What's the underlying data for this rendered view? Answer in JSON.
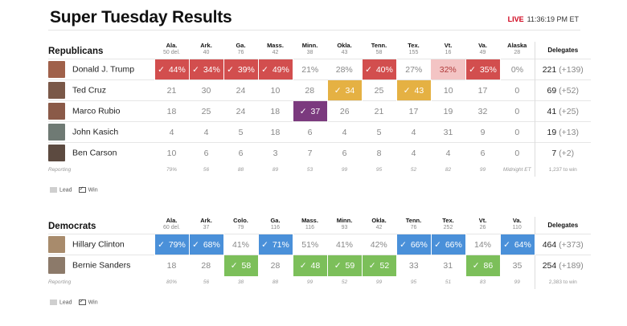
{
  "header": {
    "title": "Super Tuesday Results",
    "live_label": "LIVE",
    "time": "11:36:19 PM ET"
  },
  "colors": {
    "rep_win": "#d24e4e",
    "rep_lead": "#f3c4c4",
    "dem_win": "#4a90d9",
    "sanders_win": "#7cbf5a",
    "cruz_win": "#e5b143",
    "rubio_win": "#7b3a7e"
  },
  "legend": {
    "lead": "Lead",
    "win": "Win"
  },
  "republicans": {
    "party": "Republicans",
    "delegates_header": "Delegates",
    "states": [
      {
        "abbr": "Ala.",
        "sub": "50 del."
      },
      {
        "abbr": "Ark.",
        "sub": "40"
      },
      {
        "abbr": "Ga.",
        "sub": "76"
      },
      {
        "abbr": "Mass.",
        "sub": "42"
      },
      {
        "abbr": "Minn.",
        "sub": "38"
      },
      {
        "abbr": "Okla.",
        "sub": "43"
      },
      {
        "abbr": "Tenn.",
        "sub": "58"
      },
      {
        "abbr": "Tex.",
        "sub": "155"
      },
      {
        "abbr": "Vt.",
        "sub": "16"
      },
      {
        "abbr": "Va.",
        "sub": "49"
      },
      {
        "abbr": "Alaska",
        "sub": "28"
      }
    ],
    "candidates": [
      {
        "name": "Donald J. Trump",
        "avatar": "#a0614a",
        "color": "#d24e4e",
        "values": [
          "44%",
          "34%",
          "39%",
          "49%",
          "21%",
          "28%",
          "40%",
          "27%",
          "32%",
          "35%",
          "0%"
        ],
        "status": [
          "win",
          "win",
          "win",
          "win",
          "",
          "",
          "win",
          "",
          "lead",
          "win",
          ""
        ],
        "delegates": "221",
        "change": "(+139)"
      },
      {
        "name": "Ted Cruz",
        "avatar": "#7a5848",
        "color": "#e5b143",
        "values": [
          "21",
          "30",
          "24",
          "10",
          "28",
          "34",
          "25",
          "43",
          "10",
          "17",
          "0"
        ],
        "status": [
          "",
          "",
          "",
          "",
          "",
          "win",
          "",
          "win",
          "",
          "",
          ""
        ],
        "delegates": "69",
        "change": "(+52)"
      },
      {
        "name": "Marco Rubio",
        "avatar": "#8a5a48",
        "color": "#7b3a7e",
        "values": [
          "18",
          "25",
          "24",
          "18",
          "37",
          "26",
          "21",
          "17",
          "19",
          "32",
          "0"
        ],
        "status": [
          "",
          "",
          "",
          "",
          "win",
          "",
          "",
          "",
          "",
          "",
          ""
        ],
        "delegates": "41",
        "change": "(+25)"
      },
      {
        "name": "John Kasich",
        "avatar": "#6f7a74",
        "color": "#999999",
        "values": [
          "4",
          "4",
          "5",
          "18",
          "6",
          "4",
          "5",
          "4",
          "31",
          "9",
          "0"
        ],
        "status": [
          "",
          "",
          "",
          "",
          "",
          "",
          "",
          "",
          "",
          "",
          ""
        ],
        "delegates": "19",
        "change": "(+13)"
      },
      {
        "name": "Ben Carson",
        "avatar": "#5c4a40",
        "color": "#999999",
        "values": [
          "10",
          "6",
          "6",
          "3",
          "7",
          "6",
          "8",
          "4",
          "4",
          "6",
          "0"
        ],
        "status": [
          "",
          "",
          "",
          "",
          "",
          "",
          "",
          "",
          "",
          "",
          ""
        ],
        "delegates": "7",
        "change": "(+2)"
      }
    ],
    "reporting_label": "Reporting",
    "reporting": [
      "79%",
      "56",
      "88",
      "89",
      "53",
      "99",
      "95",
      "52",
      "82",
      "99",
      "Midnight ET"
    ],
    "to_win": "1,237 to win"
  },
  "democrats": {
    "party": "Democrats",
    "delegates_header": "Delegates",
    "states": [
      {
        "abbr": "Ala.",
        "sub": "60 del."
      },
      {
        "abbr": "Ark.",
        "sub": "37"
      },
      {
        "abbr": "Colo.",
        "sub": "79"
      },
      {
        "abbr": "Ga.",
        "sub": "116"
      },
      {
        "abbr": "Mass.",
        "sub": "116"
      },
      {
        "abbr": "Minn.",
        "sub": "93"
      },
      {
        "abbr": "Okla.",
        "sub": "42"
      },
      {
        "abbr": "Tenn.",
        "sub": "76"
      },
      {
        "abbr": "Tex.",
        "sub": "252"
      },
      {
        "abbr": "Vt.",
        "sub": "26"
      },
      {
        "abbr": "Va.",
        "sub": "110"
      }
    ],
    "candidates": [
      {
        "name": "Hillary Clinton",
        "avatar": "#a88b6c",
        "color": "#4a90d9",
        "values": [
          "79%",
          "68%",
          "41%",
          "71%",
          "51%",
          "41%",
          "42%",
          "66%",
          "66%",
          "14%",
          "64%"
        ],
        "status": [
          "win",
          "win",
          "",
          "win",
          "",
          "",
          "",
          "win",
          "win",
          "",
          "win"
        ],
        "delegates": "464",
        "change": "(+373)"
      },
      {
        "name": "Bernie Sanders",
        "avatar": "#8c7a6a",
        "color": "#7cbf5a",
        "values": [
          "18",
          "28",
          "58",
          "28",
          "48",
          "59",
          "52",
          "33",
          "31",
          "86",
          "35"
        ],
        "status": [
          "",
          "",
          "win",
          "",
          "win",
          "win",
          "win",
          "",
          "",
          "win",
          ""
        ],
        "delegates": "254",
        "change": "(+189)"
      }
    ],
    "reporting_label": "Reporting",
    "reporting": [
      "80%",
      "56",
      "38",
      "88",
      "99",
      "52",
      "99",
      "95",
      "51",
      "83",
      "99"
    ],
    "to_win": "2,383 to win"
  }
}
